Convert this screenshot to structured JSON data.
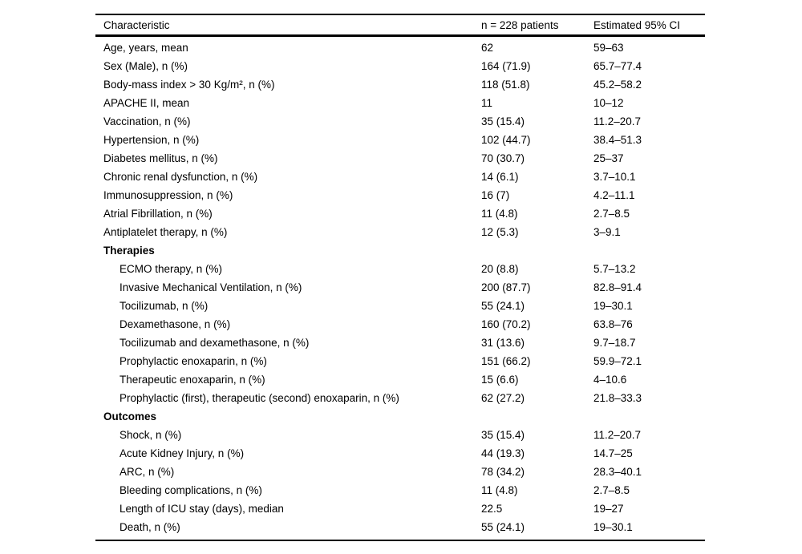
{
  "table": {
    "columns": [
      "Characteristic",
      "n = 228 patients",
      "Estimated 95% CI"
    ],
    "rows": [
      {
        "label": "Age, years, mean",
        "value": "62",
        "ci": "59–63",
        "bold": false,
        "indent": 0
      },
      {
        "label": "Sex (Male), n (%)",
        "value": "164 (71.9)",
        "ci": "65.7–77.4",
        "bold": false,
        "indent": 0
      },
      {
        "label": "Body-mass index > 30 Kg/m², n (%)",
        "value": "118 (51.8)",
        "ci": "45.2–58.2",
        "bold": false,
        "indent": 0
      },
      {
        "label": "APACHE II, mean",
        "value": "11",
        "ci": "10–12",
        "bold": false,
        "indent": 0
      },
      {
        "label": "Vaccination, n (%)",
        "value": "35 (15.4)",
        "ci": "11.2–20.7",
        "bold": false,
        "indent": 0
      },
      {
        "label": "Hypertension, n (%)",
        "value": "102 (44.7)",
        "ci": "38.4–51.3",
        "bold": false,
        "indent": 0
      },
      {
        "label": "Diabetes mellitus, n (%)",
        "value": "70 (30.7)",
        "ci": "25–37",
        "bold": false,
        "indent": 0
      },
      {
        "label": "Chronic renal dysfunction, n (%)",
        "value": "14 (6.1)",
        "ci": "3.7–10.1",
        "bold": false,
        "indent": 0
      },
      {
        "label": "Immunosuppression, n (%)",
        "value": "16 (7)",
        "ci": "4.2–11.1",
        "bold": false,
        "indent": 0
      },
      {
        "label": "Atrial Fibrillation, n (%)",
        "value": "11 (4.8)",
        "ci": "2.7–8.5",
        "bold": false,
        "indent": 0
      },
      {
        "label": "Antiplatelet therapy, n (%)",
        "value": "12 (5.3)",
        "ci": "3–9.1",
        "bold": false,
        "indent": 0
      },
      {
        "label": "Therapies",
        "value": "",
        "ci": "",
        "bold": true,
        "indent": 0
      },
      {
        "label": "ECMO therapy, n (%)",
        "value": "20 (8.8)",
        "ci": "5.7–13.2",
        "bold": false,
        "indent": 1
      },
      {
        "label": "Invasive Mechanical Ventilation, n (%)",
        "value": "200 (87.7)",
        "ci": "82.8–91.4",
        "bold": false,
        "indent": 1
      },
      {
        "label": "Tocilizumab, n (%)",
        "value": "55 (24.1)",
        "ci": "19–30.1",
        "bold": false,
        "indent": 1
      },
      {
        "label": "Dexamethasone, n (%)",
        "value": "160 (70.2)",
        "ci": "63.8–76",
        "bold": false,
        "indent": 1
      },
      {
        "label": "Tocilizumab and dexamethasone, n (%)",
        "value": "31 (13.6)",
        "ci": "9.7–18.7",
        "bold": false,
        "indent": 1
      },
      {
        "label": "Prophylactic enoxaparin, n (%)",
        "value": "151 (66.2)",
        "ci": "59.9–72.1",
        "bold": false,
        "indent": 1
      },
      {
        "label": "Therapeutic enoxaparin, n (%)",
        "value": "15 (6.6)",
        "ci": "4–10.6",
        "bold": false,
        "indent": 1
      },
      {
        "label": "Prophylactic (first), therapeutic (second) enoxaparin, n (%)",
        "value": "62 (27.2)",
        "ci": "21.8–33.3",
        "bold": false,
        "indent": 1
      },
      {
        "label": "Outcomes",
        "value": "",
        "ci": "",
        "bold": true,
        "indent": 0
      },
      {
        "label": "Shock, n (%)",
        "value": "35 (15.4)",
        "ci": "11.2–20.7",
        "bold": false,
        "indent": 1
      },
      {
        "label": "Acute Kidney Injury, n (%)",
        "value": "44 (19.3)",
        "ci": "14.7–25",
        "bold": false,
        "indent": 1
      },
      {
        "label": "ARC, n (%)",
        "value": "78 (34.2)",
        "ci": "28.3–40.1",
        "bold": false,
        "indent": 1
      },
      {
        "label": "Bleeding complications, n (%)",
        "value": "11 (4.8)",
        "ci": "2.7–8.5",
        "bold": false,
        "indent": 1
      },
      {
        "label": "Length of ICU stay (days), median",
        "value": "22.5",
        "ci": "19–27",
        "bold": false,
        "indent": 1
      },
      {
        "label": "Death, n (%)",
        "value": "55 (24.1)",
        "ci": "19–30.1",
        "bold": false,
        "indent": 1
      }
    ],
    "colors": {
      "background": "#ffffff",
      "text": "#000000",
      "rule": "#000000"
    }
  }
}
